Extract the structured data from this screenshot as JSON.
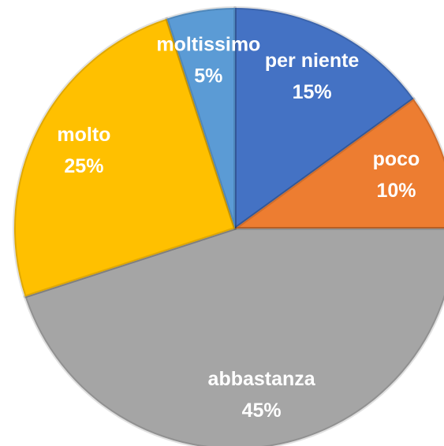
{
  "chart_data": {
    "type": "pie",
    "categories": [
      "per niente",
      "poco",
      "abbastanza",
      "molto",
      "moltissimo"
    ],
    "values": [
      15,
      10,
      45,
      25,
      5
    ],
    "value_labels": [
      "15%",
      "10%",
      "45%",
      "25%",
      "5%"
    ],
    "colors": [
      "#4472c4",
      "#ed7d31",
      "#a5a5a5",
      "#ffc000",
      "#5b9bd5"
    ]
  }
}
